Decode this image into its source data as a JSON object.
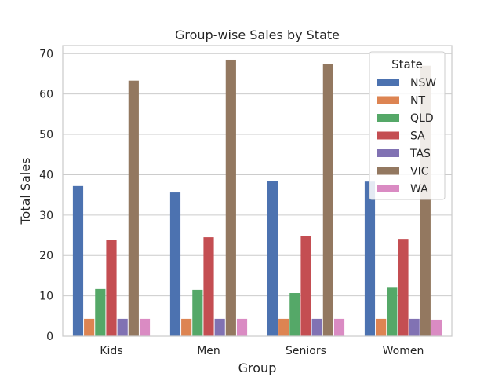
{
  "chart_data": {
    "type": "bar",
    "title": "Group-wise Sales by State",
    "xlabel": "Group",
    "ylabel": "Total Sales",
    "categories": [
      "Kids",
      "Men",
      "Seniors",
      "Women"
    ],
    "ylim": [
      0,
      72
    ],
    "yticks": [
      0,
      10,
      20,
      30,
      40,
      50,
      60,
      70
    ],
    "grid": true,
    "legend": {
      "title": "State",
      "placement": "top-right"
    },
    "series": [
      {
        "name": "NSW",
        "color": "#4c72b0",
        "values": [
          37.2,
          35.6,
          38.5,
          38.3
        ]
      },
      {
        "name": "NT",
        "color": "#dd8452",
        "values": [
          4.3,
          4.3,
          4.3,
          4.3
        ]
      },
      {
        "name": "QLD",
        "color": "#55a868",
        "values": [
          11.7,
          11.5,
          10.7,
          12.0
        ]
      },
      {
        "name": "SA",
        "color": "#c44e52",
        "values": [
          23.8,
          24.5,
          24.9,
          24.1
        ]
      },
      {
        "name": "TAS",
        "color": "#8172b3",
        "values": [
          4.3,
          4.3,
          4.3,
          4.3
        ]
      },
      {
        "name": "VIC",
        "color": "#937860",
        "values": [
          63.3,
          68.5,
          67.4,
          67.0
        ]
      },
      {
        "name": "WA",
        "color": "#da8bc3",
        "values": [
          4.3,
          4.3,
          4.3,
          4.1
        ]
      }
    ]
  }
}
